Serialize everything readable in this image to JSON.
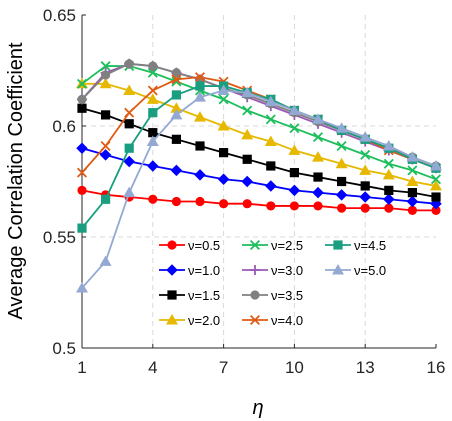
{
  "chart_data": {
    "type": "line",
    "title": "",
    "xlabel": "η",
    "ylabel": "Average Correlation Coefficient",
    "xlim": [
      1,
      16
    ],
    "ylim": [
      0.5,
      0.65
    ],
    "x": [
      1,
      2,
      3,
      4,
      5,
      6,
      7,
      8,
      9,
      10,
      11,
      12,
      13,
      14,
      15,
      16
    ],
    "xticks": [
      1,
      4,
      7,
      10,
      13,
      16
    ],
    "xtick_labels": [
      "1",
      "4",
      "7",
      "10",
      "13",
      "16"
    ],
    "yticks": [
      0.5,
      0.55,
      0.6,
      0.65
    ],
    "ytick_labels": [
      "0.5",
      "0.55",
      "0.6",
      "0.65"
    ],
    "grid": true,
    "legend_position": "lower-right",
    "series": [
      {
        "name": "ν=0.5",
        "color": "#ff0000",
        "marker": "circle",
        "values": [
          0.571,
          0.569,
          0.568,
          0.567,
          0.566,
          0.566,
          0.565,
          0.565,
          0.564,
          0.564,
          0.564,
          0.563,
          0.563,
          0.563,
          0.562,
          0.562
        ]
      },
      {
        "name": "ν=1.0",
        "color": "#0000ff",
        "marker": "diamond",
        "values": [
          0.59,
          0.587,
          0.584,
          0.582,
          0.58,
          0.578,
          0.576,
          0.575,
          0.573,
          0.571,
          0.57,
          0.569,
          0.568,
          0.567,
          0.566,
          0.565
        ]
      },
      {
        "name": "ν=1.5",
        "color": "#000000",
        "marker": "square",
        "values": [
          0.608,
          0.605,
          0.601,
          0.597,
          0.594,
          0.591,
          0.588,
          0.585,
          0.582,
          0.579,
          0.577,
          0.575,
          0.573,
          0.571,
          0.57,
          0.568
        ]
      },
      {
        "name": "ν=2.0",
        "color": "#e6b800",
        "marker": "triangle",
        "values": [
          0.619,
          0.619,
          0.616,
          0.612,
          0.608,
          0.604,
          0.6,
          0.596,
          0.593,
          0.589,
          0.586,
          0.583,
          0.58,
          0.578,
          0.575,
          0.573
        ]
      },
      {
        "name": "ν=2.5",
        "color": "#1dbe5c",
        "marker": "x",
        "values": [
          0.619,
          0.627,
          0.627,
          0.624,
          0.62,
          0.616,
          0.612,
          0.607,
          0.603,
          0.599,
          0.595,
          0.591,
          0.587,
          0.583,
          0.58,
          0.576
        ]
      },
      {
        "name": "ν=3.0",
        "color": "#9b59b6",
        "marker": "plus",
        "values": [
          0.612,
          0.624,
          0.628,
          0.627,
          0.624,
          0.621,
          0.617,
          0.613,
          0.609,
          0.605,
          0.601,
          0.597,
          0.593,
          0.589,
          0.585,
          0.581
        ]
      },
      {
        "name": "ν=3.5",
        "color": "#808080",
        "marker": "circle",
        "values": [
          0.612,
          0.623,
          0.628,
          0.627,
          0.624,
          0.621,
          0.617,
          0.614,
          0.61,
          0.606,
          0.602,
          0.598,
          0.594,
          0.59,
          0.586,
          0.582
        ]
      },
      {
        "name": "ν=4.0",
        "color": "#e05a14",
        "marker": "x",
        "values": [
          0.579,
          0.591,
          0.606,
          0.616,
          0.621,
          0.622,
          0.62,
          0.616,
          0.612,
          0.607,
          0.603,
          0.598,
          0.594,
          0.589,
          0.585,
          0.581
        ]
      },
      {
        "name": "ν=4.5",
        "color": "#1a9e80",
        "marker": "square",
        "values": [
          0.554,
          0.567,
          0.59,
          0.606,
          0.614,
          0.618,
          0.618,
          0.615,
          0.612,
          0.607,
          0.603,
          0.598,
          0.594,
          0.59,
          0.585,
          0.581
        ]
      },
      {
        "name": "ν=5.0",
        "color": "#93a8d2",
        "marker": "triangle",
        "values": [
          0.527,
          0.539,
          0.57,
          0.593,
          0.605,
          0.613,
          0.616,
          0.615,
          0.611,
          0.607,
          0.603,
          0.599,
          0.595,
          0.591,
          0.586,
          0.582
        ]
      }
    ]
  }
}
